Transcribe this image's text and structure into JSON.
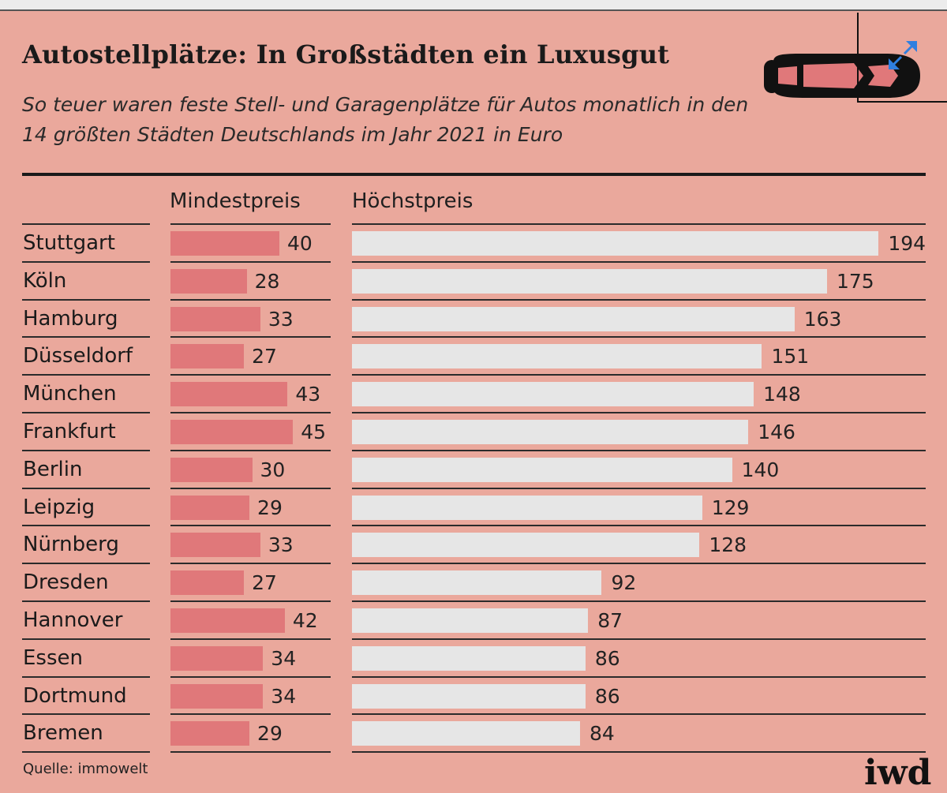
{
  "header": {
    "title": "Autostellplätze: In Großstädten ein Luxusgut",
    "subtitle": "So teuer waren feste Stell- und Garagenplätze für Autos monatlich in den 14 größten Städten Deutschlands im Jahr 2021 in Euro"
  },
  "columns": {
    "min_label": "Mindestpreis",
    "max_label": "Höchstpreis"
  },
  "footer": {
    "source": "Quelle: immowelt",
    "logo_text": "iwd"
  },
  "icons": {
    "car": "car-icon",
    "expand": "expand-arrows-icon"
  },
  "colors": {
    "background": "#eaa89c",
    "min_bar": "#e0787a",
    "max_bar": "#e6e6e6",
    "text": "#1a1a1a",
    "expand_icon": "#2f7fe0"
  },
  "chart_data": {
    "type": "bar",
    "orientation": "horizontal",
    "categories": [
      "Stuttgart",
      "Köln",
      "Hamburg",
      "Düsseldorf",
      "München",
      "Frankfurt",
      "Berlin",
      "Leipzig",
      "Nürnberg",
      "Dresden",
      "Hannover",
      "Essen",
      "Dortmund",
      "Bremen"
    ],
    "series": [
      {
        "name": "Mindestpreis",
        "values": [
          40,
          28,
          33,
          27,
          43,
          45,
          30,
          29,
          33,
          27,
          42,
          34,
          34,
          29
        ]
      },
      {
        "name": "Höchstpreis",
        "values": [
          194,
          175,
          163,
          151,
          148,
          146,
          140,
          129,
          128,
          92,
          87,
          86,
          86,
          84
        ]
      }
    ],
    "title": "Autostellplätze: In Großstädten ein Luxusgut",
    "xlabel": "",
    "ylabel": "",
    "data_labels": true,
    "grid": false
  }
}
